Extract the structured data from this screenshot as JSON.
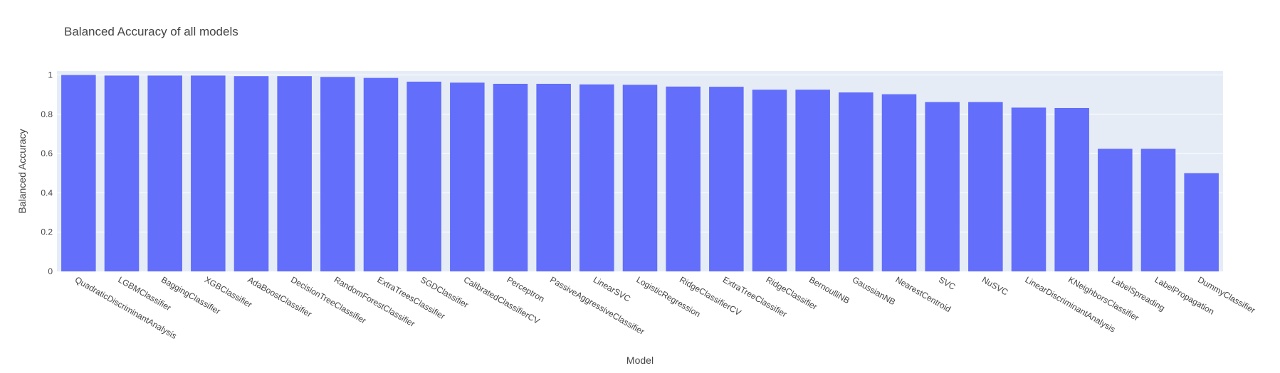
{
  "chart_data": {
    "type": "bar",
    "title": "Balanced Accuracy of all models",
    "xlabel": "Model",
    "ylabel": "Balanced Accuracy",
    "ylim": [
      0,
      1.02
    ],
    "yticks": [
      "0",
      "0.2",
      "0.4",
      "0.6",
      "0.8",
      "1"
    ],
    "grid": true,
    "categories": [
      "QuadraticDiscriminantAnalysis",
      "LGBMClassifier",
      "BaggingClassifier",
      "XGBClassifier",
      "AdaBoostClassifier",
      "DecisionTreeClassifier",
      "RandomForestClassifier",
      "ExtraTreesClassifier",
      "SGDClassifier",
      "CalibratedClassifierCV",
      "Perceptron",
      "PassiveAggressiveClassifier",
      "LinearSVC",
      "LogisticRegression",
      "RidgeClassifierCV",
      "ExtraTreeClassifier",
      "RidgeClassifier",
      "BernoulliNB",
      "GaussianNB",
      "NearestCentroid",
      "SVC",
      "NuSVC",
      "LinearDiscriminantAnalysis",
      "KNeighborsClassifier",
      "LabelSpreading",
      "LabelPropagation",
      "DummyClassifier"
    ],
    "values": [
      1.0,
      0.997,
      0.997,
      0.997,
      0.994,
      0.994,
      0.99,
      0.985,
      0.966,
      0.961,
      0.955,
      0.955,
      0.952,
      0.95,
      0.941,
      0.94,
      0.925,
      0.925,
      0.911,
      0.902,
      0.862,
      0.862,
      0.834,
      0.832,
      0.624,
      0.624,
      0.5
    ],
    "colors": {
      "bar": "#636efa",
      "plot_bg": "#e5ecf6",
      "grid": "#ffffff",
      "text": "#444444"
    }
  }
}
